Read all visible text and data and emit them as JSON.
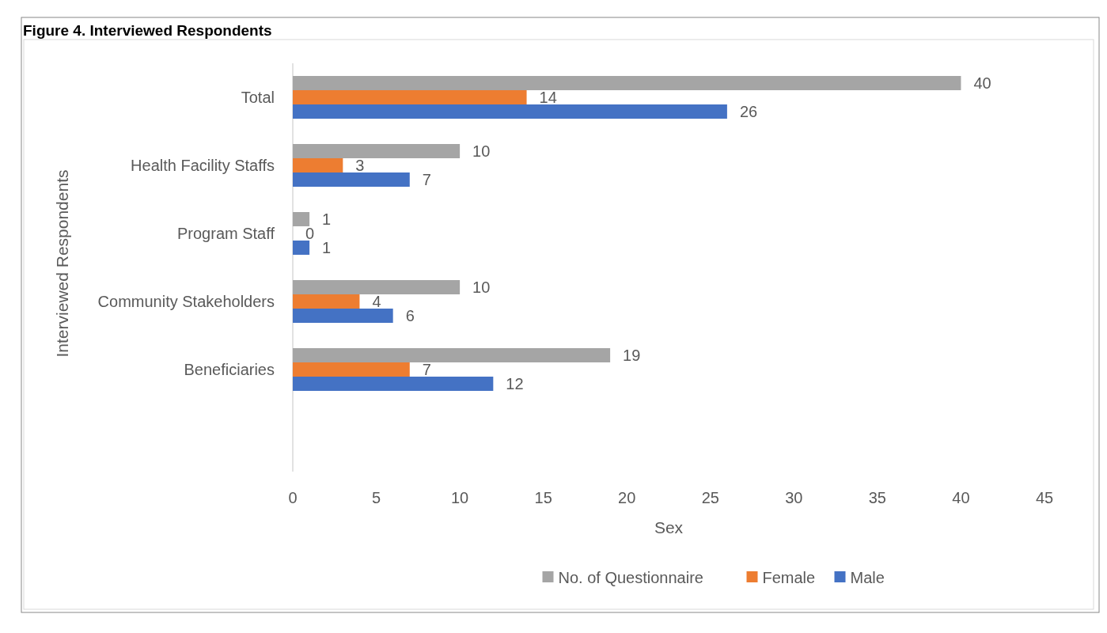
{
  "chart_data": {
    "type": "bar",
    "orientation": "horizontal",
    "title": "Figure 4. Interviewed Respondents",
    "xlabel": "Sex",
    "ylabel": "Interviewed Respondents",
    "categories": [
      "Total",
      "Health Facility Staffs",
      "Program Staff",
      "Community Stakeholders",
      "Beneficiaries",
      null
    ],
    "series": [
      {
        "name": "No. of Questionnaire",
        "color": "#a5a5a5",
        "values": [
          40,
          10,
          1,
          10,
          19,
          null
        ]
      },
      {
        "name": "Female",
        "color": "#ed7d31",
        "values": [
          14,
          3,
          0,
          4,
          7,
          null
        ]
      },
      {
        "name": "Male",
        "color": "#4472c4",
        "values": [
          26,
          7,
          1,
          6,
          12,
          null
        ]
      }
    ],
    "xlim": [
      0,
      45
    ],
    "xticks": [
      0,
      5,
      10,
      15,
      20,
      25,
      30,
      35,
      40,
      45
    ],
    "data_labels": true,
    "grid": false,
    "legend": "bottom"
  }
}
